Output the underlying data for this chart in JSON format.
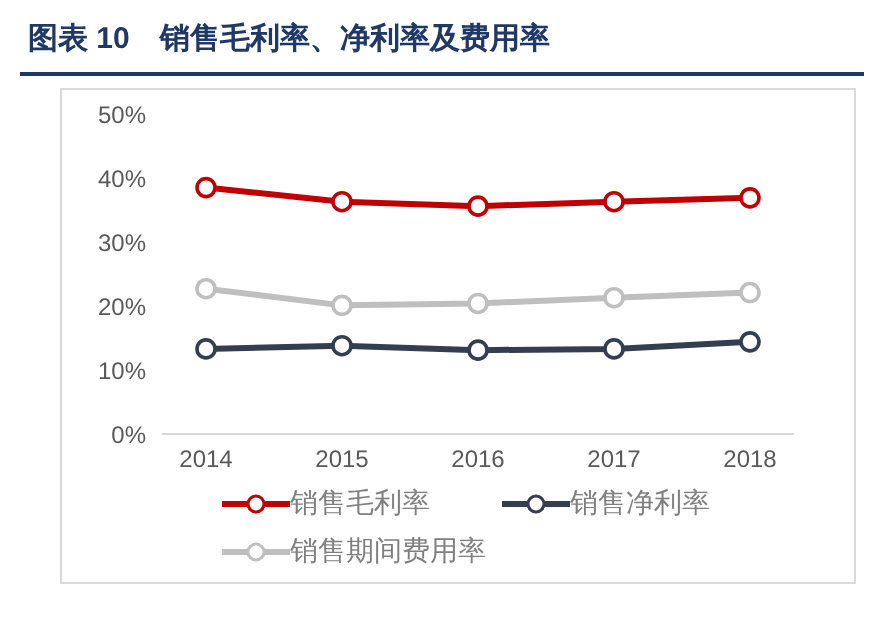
{
  "chart_data": {
    "type": "line",
    "title": "图表 10　销售毛利率、净利率及费用率",
    "categories": [
      "2014",
      "2015",
      "2016",
      "2017",
      "2018"
    ],
    "series": [
      {
        "name": "销售毛利率",
        "color": "#c00000",
        "values": [
          38.5,
          36.3,
          35.6,
          36.3,
          36.9
        ]
      },
      {
        "name": "销售净利率",
        "color": "#333f50",
        "values": [
          13.3,
          13.8,
          13.1,
          13.3,
          14.4
        ]
      },
      {
        "name": "销售期间费用率",
        "color": "#bfbfbf",
        "values": [
          22.7,
          20.1,
          20.4,
          21.3,
          22.1
        ]
      }
    ],
    "ylim": [
      0,
      50
    ],
    "yticks": [
      {
        "value": 0,
        "label": "0%"
      },
      {
        "value": 10,
        "label": "10%"
      },
      {
        "value": 20,
        "label": "20%"
      },
      {
        "value": 30,
        "label": "30%"
      },
      {
        "value": 40,
        "label": "40%"
      },
      {
        "value": 50,
        "label": "50%"
      }
    ],
    "grid": false,
    "legend": "bottom",
    "marker": "circle",
    "line_style": "solid"
  }
}
